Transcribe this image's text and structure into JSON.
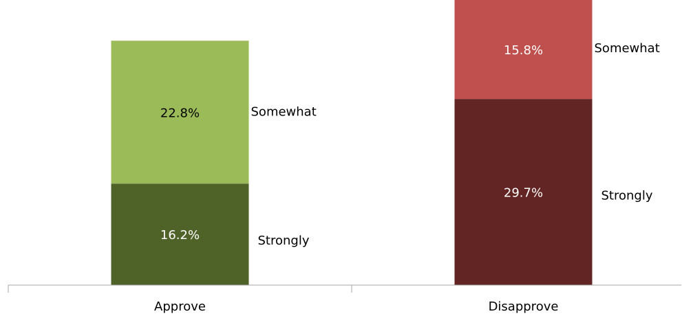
{
  "chart_data": {
    "type": "bar",
    "stacked": true,
    "categories": [
      "Approve",
      "Disapprove"
    ],
    "series": [
      {
        "name": "Strongly",
        "values": [
          16.2,
          29.7
        ],
        "labels": [
          "16.2%",
          "29.7%"
        ],
        "colors": [
          "#4f6228",
          "#632523"
        ]
      },
      {
        "name": "Somewhat",
        "values": [
          22.8,
          15.8
        ],
        "labels": [
          "22.8%",
          "15.8%"
        ],
        "colors": [
          "#9bbb59",
          "#c0504d"
        ]
      }
    ],
    "label_colors": {
      "Approve": [
        "#ffffff",
        "#000000"
      ],
      "Disapprove": [
        "#ffffff",
        "#ffffff"
      ]
    },
    "ylim": [
      0,
      45.5
    ],
    "title": "",
    "xlabel": "",
    "ylabel": "",
    "grid": false,
    "legend": "inline-right-of-bars"
  }
}
